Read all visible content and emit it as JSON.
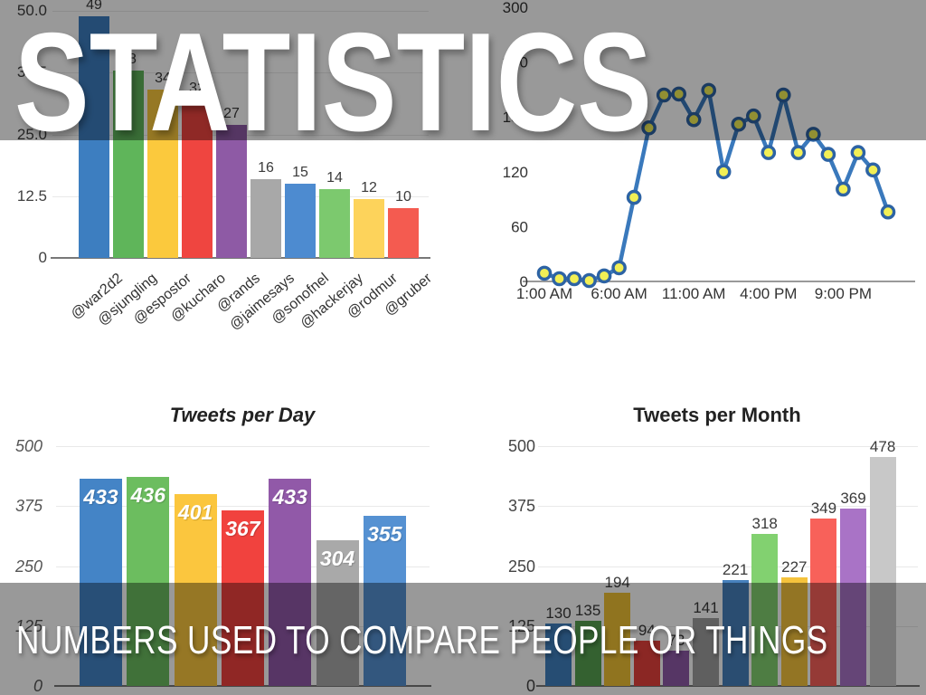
{
  "slide": {
    "title": "STATISTICS",
    "caption": "NUMBERS USED TO COMPARE PEOPLE OR THINGS"
  },
  "colors": {
    "background": "#ffffff",
    "overlay": "rgba(0,0,0,0.40)",
    "title_text": "#ffffff",
    "caption_text": "#ffffff",
    "axis_text": "#3f3f3f",
    "line_color": "#3a79bc",
    "marker_fill": "#f2ef55",
    "marker_stroke": "#2d63a4"
  },
  "chart_data": [
    {
      "type": "bar",
      "name": "followers-by-user",
      "title": "",
      "categories": [
        "@war2d2",
        "@sjungling",
        "@espostor",
        "@kucharo",
        "@rands",
        "@jaimesays",
        "@sonofnel",
        "@hackerjay",
        "@rodmur",
        "@gruber"
      ],
      "values": [
        49,
        38,
        34,
        32,
        27,
        16,
        15,
        14,
        12,
        10
      ],
      "bar_colors": [
        "#3d7ec0",
        "#5fb55a",
        "#fbc93d",
        "#ef4540",
        "#8e5aa5",
        "#a8a8a8",
        "#4d8bd0",
        "#7cc96e",
        "#fdd35b",
        "#f45b50"
      ],
      "ylim": [
        0,
        50
      ],
      "yticks": [
        "0",
        "12.5",
        "25.0",
        "37.5",
        "50.0"
      ],
      "grid": true,
      "legend": "none",
      "value_labels": "above"
    },
    {
      "type": "line",
      "name": "tweets-by-hour",
      "title": "",
      "x_tick_labels": [
        "1:00 AM",
        "6:00 AM",
        "11:00 AM",
        "4:00 PM",
        "9:00 PM"
      ],
      "x_tick_every": 5,
      "values": [
        9,
        3,
        3,
        1,
        6,
        15,
        92,
        168,
        204,
        205,
        177,
        209,
        120,
        172,
        181,
        141,
        204,
        141,
        161,
        139,
        101,
        141,
        122,
        76
      ],
      "ylim": [
        0,
        300
      ],
      "yticks": [
        "0",
        "60",
        "120",
        "180",
        "240",
        "300"
      ],
      "grid": false,
      "legend": "none",
      "line_color": "#3a79bc",
      "marker_fill": "#f2ef55",
      "marker_stroke": "#2d63a4"
    },
    {
      "type": "bar",
      "name": "tweets-per-day",
      "title": "Tweets per Day",
      "values": [
        433,
        436,
        401,
        367,
        433,
        304,
        355
      ],
      "bar_colors": [
        "#4484c6",
        "#6cbd5f",
        "#fbc63e",
        "#f1423e",
        "#9159a8",
        "#a9a9a9",
        "#5591d2"
      ],
      "ylim": [
        0,
        500
      ],
      "yticks": [
        "0",
        "125",
        "250",
        "375",
        "500"
      ],
      "grid": true,
      "legend": "none",
      "value_labels": "inside"
    },
    {
      "type": "bar",
      "name": "tweets-per-month",
      "title": "Tweets per Month",
      "values": [
        130,
        135,
        194,
        94,
        73,
        141,
        221,
        318,
        227,
        349,
        369,
        478
      ],
      "bar_colors": [
        "#4080c0",
        "#58a251",
        "#f1c235",
        "#e8423c",
        "#8f5aa8",
        "#9e9e9e",
        "#4781bd",
        "#82d170",
        "#f5c33c",
        "#f8615a",
        "#a973c6",
        "#c8c8c8"
      ],
      "ylim": [
        0,
        500
      ],
      "yticks": [
        "0",
        "125",
        "250",
        "375",
        "500"
      ],
      "grid": true,
      "legend": "none",
      "value_labels": "above"
    }
  ]
}
